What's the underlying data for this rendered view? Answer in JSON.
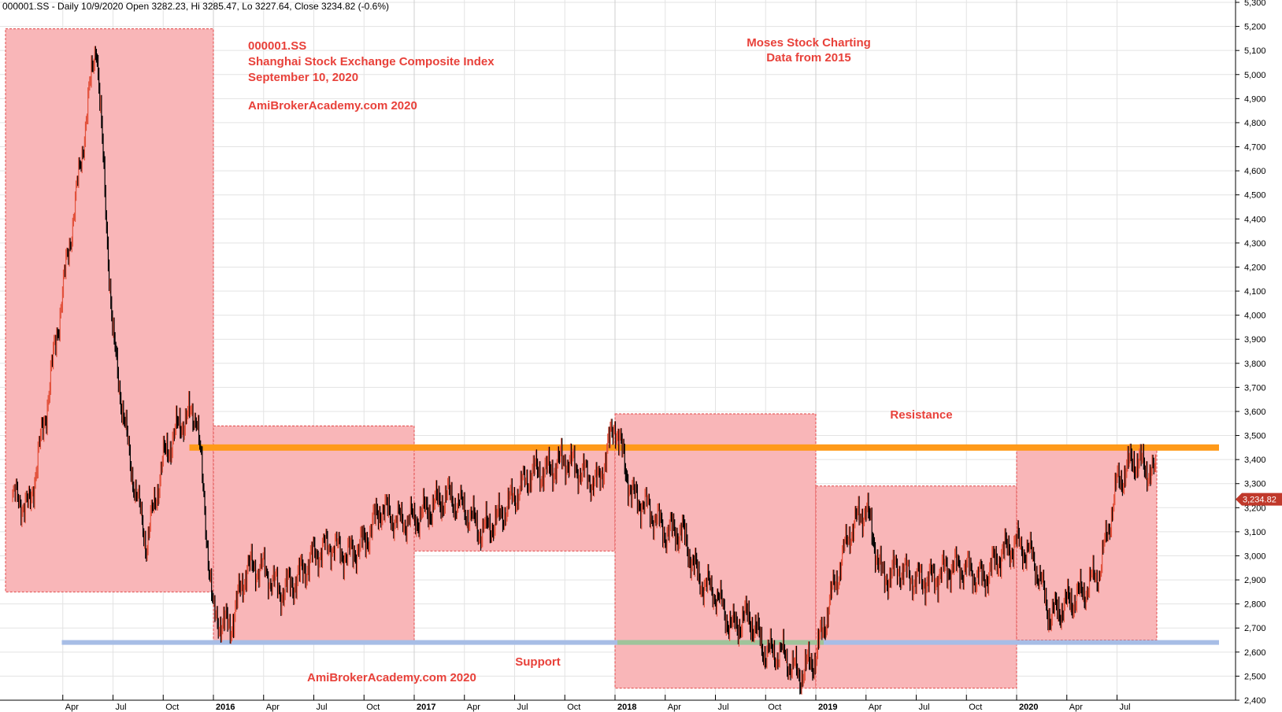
{
  "header": {
    "info": "000001.SS - Daily 10/9/2020 Open 3282.23, Hi 3285.47, Lo 3227.64, Close 3234.82 (-0.6%)"
  },
  "annotations": {
    "left_block": [
      "000001.SS",
      "Shanghai Stock Exchange Composite Index",
      "September 10, 2020"
    ],
    "watermark_top": "AmiBrokerAcademy.com  2020",
    "center_block": [
      "Moses Stock Charting",
      "Data from 2015"
    ],
    "resistance": "Resistance",
    "support": "Support",
    "watermark_bottom": "AmiBrokerAcademy.com  2020"
  },
  "last_price_label": "3,234.82",
  "colors": {
    "box_fill": "#f9b6b8",
    "box_border": "#e04848",
    "resistance_line": "#ff9a1a",
    "support_line": "#a7bde6",
    "support_line_overlap": "#9fc49a",
    "annotation_text": "#e8413a",
    "last_price_bg": "#c0392b",
    "candle_up": "#e2503a",
    "candle_down": "#000000"
  },
  "chart_data": {
    "type": "line",
    "subtype": "candlestick",
    "symbol": "000001.SS",
    "interval": "Daily",
    "ohlc_last": {
      "date": "10/9/2020",
      "open": 3282.23,
      "high": 3285.47,
      "low": 3227.64,
      "close": 3234.82,
      "change_pct": -0.6
    },
    "ylim": [
      2400,
      5300
    ],
    "y_ticks": [
      "2,400",
      "2,500",
      "2,600",
      "2,700",
      "2,800",
      "2,900",
      "3,000",
      "3,100",
      "3,200",
      "3,300",
      "3,400",
      "3,500",
      "3,600",
      "3,700",
      "3,800",
      "3,900",
      "4,000",
      "4,100",
      "4,200",
      "4,300",
      "4,400",
      "4,500",
      "4,600",
      "4,700",
      "4,800",
      "4,900",
      "5,000",
      "5,100",
      "5,200",
      "5,300"
    ],
    "x_range": [
      "2015-01",
      "2020-09"
    ],
    "x_ticks": [
      {
        "date": "2015-04",
        "label": "Apr",
        "year": false
      },
      {
        "date": "2015-07",
        "label": "Jul",
        "year": false
      },
      {
        "date": "2015-10",
        "label": "Oct",
        "year": false
      },
      {
        "date": "2016-01",
        "label": "2016",
        "year": true
      },
      {
        "date": "2016-04",
        "label": "Apr",
        "year": false
      },
      {
        "date": "2016-07",
        "label": "Jul",
        "year": false
      },
      {
        "date": "2016-10",
        "label": "Oct",
        "year": false
      },
      {
        "date": "2017-01",
        "label": "2017",
        "year": true
      },
      {
        "date": "2017-04",
        "label": "Apr",
        "year": false
      },
      {
        "date": "2017-07",
        "label": "Jul",
        "year": false
      },
      {
        "date": "2017-10",
        "label": "Oct",
        "year": false
      },
      {
        "date": "2018-01",
        "label": "2018",
        "year": true
      },
      {
        "date": "2018-04",
        "label": "Apr",
        "year": false
      },
      {
        "date": "2018-07",
        "label": "Jul",
        "year": false
      },
      {
        "date": "2018-10",
        "label": "Oct",
        "year": false
      },
      {
        "date": "2019-01",
        "label": "2019",
        "year": true
      },
      {
        "date": "2019-04",
        "label": "Apr",
        "year": false
      },
      {
        "date": "2019-07",
        "label": "Jul",
        "year": false
      },
      {
        "date": "2019-10",
        "label": "Oct",
        "year": false
      },
      {
        "date": "2020-01",
        "label": "2020",
        "year": true
      },
      {
        "date": "2020-04",
        "label": "Apr",
        "year": false
      },
      {
        "date": "2020-07",
        "label": "Jul",
        "year": false
      }
    ],
    "grid": true,
    "series": [
      {
        "x": [
          "2015-01",
          "2015-02",
          "2015-03",
          "2015-04",
          "2015-05",
          "2015-06",
          "2015-07",
          "2015-08",
          "2015-09",
          "2015-10",
          "2015-11",
          "2015-12",
          "2016-01",
          "2016-02",
          "2016-03",
          "2016-04",
          "2016-05",
          "2016-06",
          "2016-07",
          "2016-08",
          "2016-09",
          "2016-10",
          "2016-11",
          "2016-12",
          "2017-01",
          "2017-02",
          "2017-03",
          "2017-04",
          "2017-05",
          "2017-06",
          "2017-07",
          "2017-08",
          "2017-09",
          "2017-10",
          "2017-11",
          "2017-12",
          "2018-01",
          "2018-02",
          "2018-03",
          "2018-04",
          "2018-05",
          "2018-06",
          "2018-07",
          "2018-08",
          "2018-09",
          "2018-10",
          "2018-11",
          "2018-12",
          "2019-01",
          "2019-02",
          "2019-03",
          "2019-04",
          "2019-05",
          "2019-06",
          "2019-07",
          "2019-08",
          "2019-09",
          "2019-10",
          "2019-11",
          "2019-12",
          "2020-01",
          "2020-02",
          "2020-03",
          "2020-04",
          "2020-05",
          "2020-06",
          "2020-07",
          "2020-08",
          "2020-09"
        ],
        "values": [
          3250,
          3200,
          3600,
          4100,
          4600,
          5150,
          3900,
          3400,
          3050,
          3400,
          3550,
          3600,
          2750,
          2700,
          2950,
          2950,
          2850,
          2900,
          3000,
          3050,
          3000,
          3050,
          3200,
          3150,
          3150,
          3200,
          3250,
          3200,
          3100,
          3150,
          3250,
          3350,
          3350,
          3400,
          3350,
          3300,
          3550,
          3250,
          3200,
          3100,
          3100,
          2900,
          2850,
          2700,
          2750,
          2600,
          2600,
          2500,
          2580,
          2850,
          3100,
          3200,
          2900,
          2950,
          2900,
          2900,
          2950,
          2950,
          2900,
          3000,
          3050,
          3000,
          2750,
          2800,
          2850,
          2950,
          3300,
          3400,
          3350
        ]
      }
    ],
    "zones": [
      {
        "name": "box-2015",
        "x_start": "2015-01",
        "x_end": "2015-12",
        "y_low": 2850,
        "y_high": 5190
      },
      {
        "name": "box-2016",
        "x_start": "2016-01",
        "x_end": "2016-12",
        "y_low": 2640,
        "y_high": 3540
      },
      {
        "name": "box-2017",
        "x_start": "2017-01",
        "x_end": "2017-12",
        "y_low": 3020,
        "y_high": 3440
      },
      {
        "name": "box-2018",
        "x_start": "2018-01",
        "x_end": "2018-12",
        "y_low": 2450,
        "y_high": 3590
      },
      {
        "name": "box-2019",
        "x_start": "2019-01",
        "x_end": "2019-12",
        "y_low": 2450,
        "y_high": 3290
      },
      {
        "name": "box-2020",
        "x_start": "2020-01",
        "x_end": "2020-09",
        "y_low": 2650,
        "y_high": 3460
      }
    ],
    "levels": [
      {
        "name": "resistance",
        "y": 3450,
        "x_start": "2015-11"
      },
      {
        "name": "support",
        "y": 2640,
        "x_start": "2015-03"
      }
    ]
  }
}
